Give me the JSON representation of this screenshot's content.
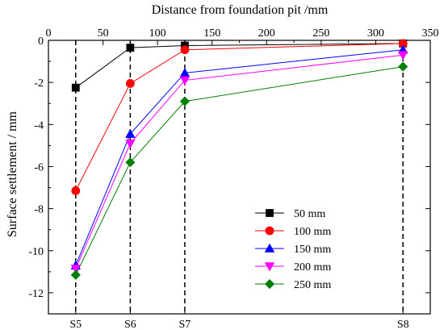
{
  "chart_data": {
    "type": "line",
    "title": "",
    "xlabel": "Distance from foundation pit /mm",
    "ylabel": "Surface settlement / mm",
    "xlim": [
      0,
      350
    ],
    "ylim": [
      -13,
      0
    ],
    "x_ticks": [
      0,
      50,
      100,
      150,
      200,
      250,
      300,
      350
    ],
    "y_ticks": [
      0,
      -2,
      -4,
      -6,
      -8,
      -10,
      -12
    ],
    "grid": false,
    "legend_position": "bottom-right",
    "x": [
      25,
      75,
      125,
      325
    ],
    "categories": [
      "S5",
      "S6",
      "S7",
      "S8"
    ],
    "reference_lines": "dashed vertical lines at each category position",
    "series": [
      {
        "name": "50 mm",
        "color": "#000000",
        "marker": "square",
        "values": [
          -2.25,
          -0.35,
          -0.25,
          -0.15
        ]
      },
      {
        "name": "100 mm",
        "color": "#ff0000",
        "marker": "circle",
        "values": [
          -7.15,
          -2.05,
          -0.45,
          -0.15
        ]
      },
      {
        "name": "150 mm",
        "color": "#0000ff",
        "marker": "triangle-up",
        "values": [
          -10.7,
          -4.45,
          -1.55,
          -0.45
        ]
      },
      {
        "name": "200 mm",
        "color": "#ff00ff",
        "marker": "triangle-down",
        "values": [
          -10.85,
          -4.9,
          -1.9,
          -0.7
        ]
      },
      {
        "name": "250 mm",
        "color": "#008000",
        "marker": "diamond",
        "values": [
          -11.15,
          -5.8,
          -2.9,
          -1.25
        ]
      }
    ]
  }
}
